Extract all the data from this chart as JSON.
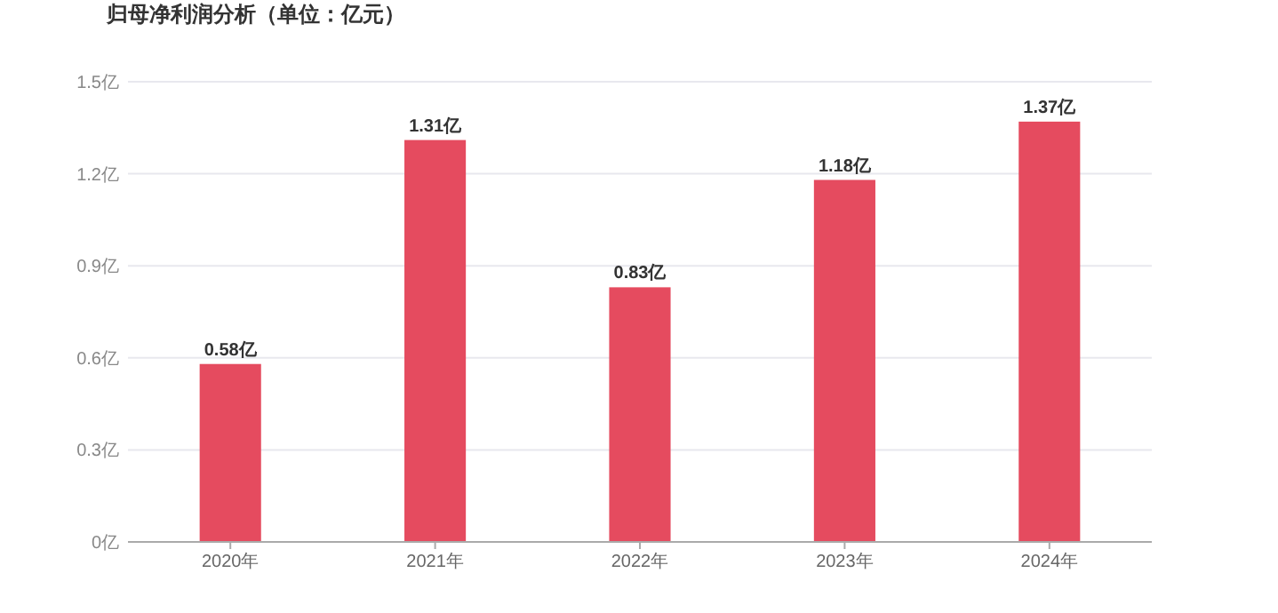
{
  "chart_data": {
    "type": "bar",
    "title": "归母净利润分析（单位：亿元）",
    "categories": [
      "2020年",
      "2021年",
      "2022年",
      "2023年",
      "2024年"
    ],
    "values": [
      0.58,
      1.31,
      0.83,
      1.18,
      1.37
    ],
    "value_labels": [
      "0.58亿",
      "1.31亿",
      "0.83亿",
      "1.18亿",
      "1.37亿"
    ],
    "color": "#e54b5f",
    "ylim": [
      0,
      1.5
    ],
    "yticks": [
      {
        "value": 0,
        "label": "0亿"
      },
      {
        "value": 0.3,
        "label": "0.3亿"
      },
      {
        "value": 0.6,
        "label": "0.6亿"
      },
      {
        "value": 0.9,
        "label": "0.9亿"
      },
      {
        "value": 1.2,
        "label": "1.2亿"
      },
      {
        "value": 1.5,
        "label": "1.5亿"
      }
    ],
    "grid": "y"
  }
}
